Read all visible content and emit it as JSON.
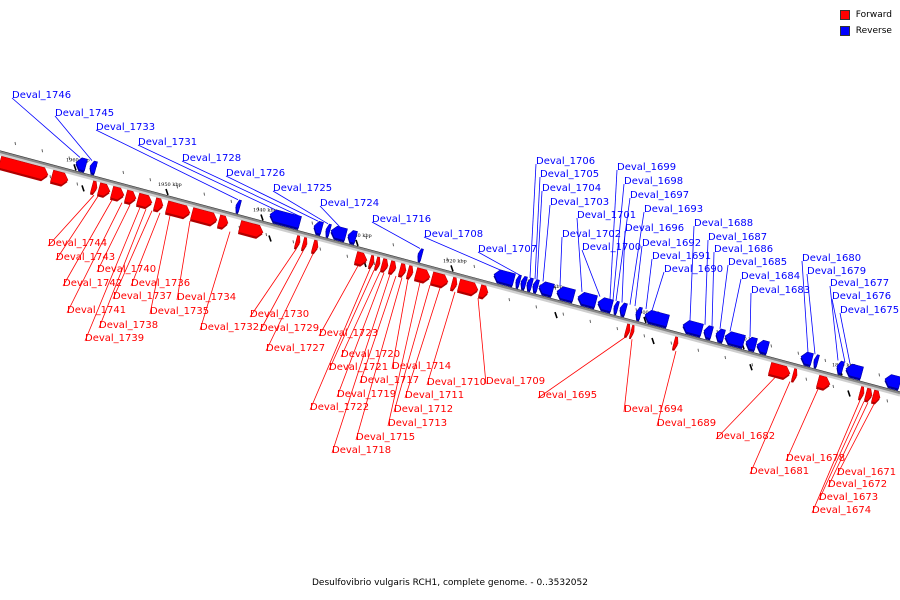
{
  "caption": "Desulfovibrio vulgaris RCH1, complete genome. - 0..3532052",
  "legend": {
    "forward": {
      "label": "Forward",
      "color": "#ff0000"
    },
    "reverse": {
      "label": "Reverse",
      "color": "#0000ff"
    }
  },
  "colors": {
    "forward": "#ff0000",
    "forward_dark": "#b00000",
    "reverse": "#0000ff",
    "reverse_dark": "#000099",
    "axis": "#888888"
  },
  "ticks": [
    "1960 kbp",
    "1950 kbp",
    "1940 kbp",
    "1930 kbp",
    "1920 kbp",
    "1910 kbp",
    "1900 kbp",
    "1890 kbp",
    "1880 kbp"
  ],
  "genes": {
    "reverse": [
      "Deval_1746",
      "Deval_1745",
      "Deval_1733",
      "Deval_1731",
      "Deval_1728",
      "Deval_1726",
      "Deval_1725",
      "Deval_1724",
      "Deval_1716",
      "Deval_1708",
      "Deval_1707",
      "Deval_1706",
      "Deval_1705",
      "Deval_1704",
      "Deval_1703",
      "Deval_1702",
      "Deval_1701",
      "Deval_1700",
      "Deval_1699",
      "Deval_1698",
      "Deval_1697",
      "Deval_1696",
      "Deval_1693",
      "Deval_1692",
      "Deval_1691",
      "Deval_1690",
      "Deval_1688",
      "Deval_1687",
      "Deval_1686",
      "Deval_1685",
      "Deval_1684",
      "Deval_1683",
      "Deval_1680",
      "Deval_1679",
      "Deval_1677",
      "Deval_1676",
      "Deval_1675"
    ],
    "forward": [
      "Deval_1744",
      "Deval_1743",
      "Deval_1742",
      "Deval_1741",
      "Deval_1740",
      "Deval_1739",
      "Deval_1738",
      "Deval_1737",
      "Deval_1736",
      "Deval_1735",
      "Deval_1734",
      "Deval_1732",
      "Deval_1730",
      "Deval_1729",
      "Deval_1727",
      "Deval_1723",
      "Deval_1722",
      "Deval_1721",
      "Deval_1720",
      "Deval_1719",
      "Deval_1718",
      "Deval_1717",
      "Deval_1715",
      "Deval_1714",
      "Deval_1713",
      "Deval_1712",
      "Deval_1711",
      "Deval_1710",
      "Deval_1709",
      "Deval_1695",
      "Deval_1694",
      "Deval_1689",
      "Deval_1682",
      "Deval_1681",
      "Deval_1678",
      "Deval_1674",
      "Deval_1673",
      "Deval_1672",
      "Deval_1671"
    ]
  }
}
